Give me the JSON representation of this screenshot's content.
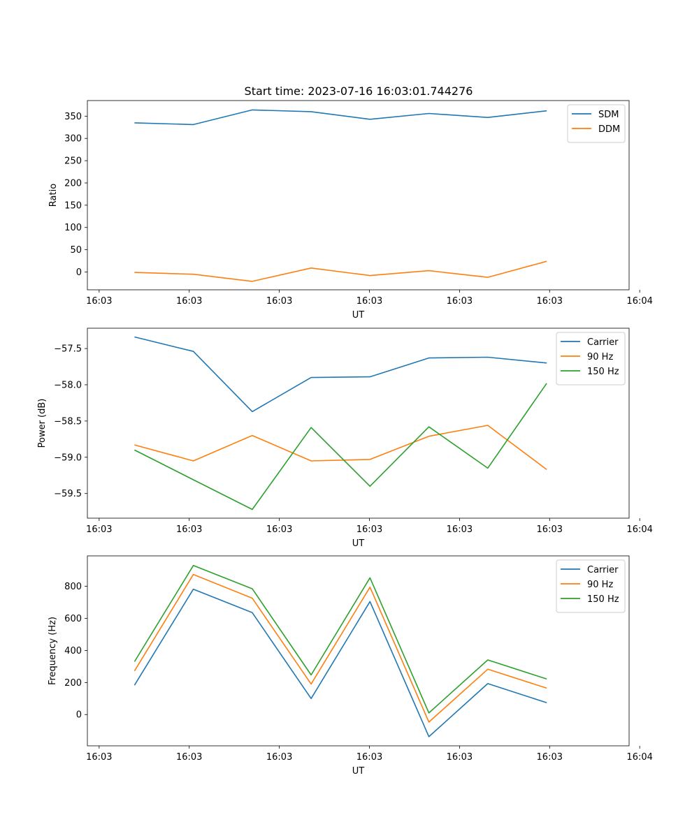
{
  "figure_title": "Start time: 2023-07-16 16:03:01.744276",
  "chart_data": [
    {
      "type": "line",
      "title": "Start time: 2023-07-16 16:03:01.744276",
      "xlabel": "UT",
      "ylabel": "Ratio",
      "x": [
        1,
        2,
        3,
        4,
        5,
        6,
        7,
        8
      ],
      "xlim": [
        0.2,
        9.4
      ],
      "x_ticks": [
        0.4,
        1.93,
        3.46,
        4.99,
        6.52,
        8.05,
        9.58
      ],
      "x_tick_labels": [
        "16:03",
        "16:03",
        "16:03",
        "16:03",
        "16:03",
        "16:03",
        "16:04"
      ],
      "ylim": [
        -40,
        385
      ],
      "y_ticks": [
        0,
        50,
        100,
        150,
        200,
        250,
        300,
        350
      ],
      "y_tick_labels": [
        "0",
        "50",
        "100",
        "150",
        "200",
        "250",
        "300",
        "350"
      ],
      "legend_position": "top-right",
      "series": [
        {
          "name": "SDM",
          "color": "#1f77b4",
          "values": [
            335,
            331,
            364,
            360,
            343,
            356,
            347,
            362
          ]
        },
        {
          "name": "DDM",
          "color": "#ff7f0e",
          "values": [
            -1,
            -5,
            -21,
            9,
            -8,
            3,
            -12,
            24
          ]
        }
      ]
    },
    {
      "type": "line",
      "title": "",
      "xlabel": "UT",
      "ylabel": "Power (dB)",
      "x": [
        1,
        2,
        3,
        4,
        5,
        6,
        7,
        8
      ],
      "xlim": [
        0.2,
        9.4
      ],
      "x_ticks": [
        0.4,
        1.93,
        3.46,
        4.99,
        6.52,
        8.05,
        9.58
      ],
      "x_tick_labels": [
        "16:03",
        "16:03",
        "16:03",
        "16:03",
        "16:03",
        "16:03",
        "16:04"
      ],
      "ylim": [
        -59.84,
        -57.22
      ],
      "y_ticks": [
        -59.5,
        -59.0,
        -58.5,
        -58.0,
        -57.5
      ],
      "y_tick_labels": [
        "−59.5",
        "−59.0",
        "−58.5",
        "−58.0",
        "−57.5"
      ],
      "legend_position": "top-right",
      "series": [
        {
          "name": "Carrier",
          "color": "#1f77b4",
          "values": [
            -57.34,
            -57.54,
            -58.37,
            -57.9,
            -57.89,
            -57.63,
            -57.62,
            -57.7
          ]
        },
        {
          "name": "90 Hz",
          "color": "#ff7f0e",
          "values": [
            -58.83,
            -59.05,
            -58.7,
            -59.05,
            -59.03,
            -58.71,
            -58.56,
            -59.17
          ]
        },
        {
          "name": "150 Hz",
          "color": "#2ca02c",
          "values": [
            -58.9,
            -59.31,
            -59.72,
            -58.59,
            -59.4,
            -58.58,
            -59.15,
            -57.98
          ]
        }
      ]
    },
    {
      "type": "line",
      "title": "",
      "xlabel": "UT",
      "ylabel": "Frequency (Hz)",
      "x": [
        1,
        2,
        3,
        4,
        5,
        6,
        7,
        8
      ],
      "xlim": [
        0.2,
        9.4
      ],
      "x_ticks": [
        0.4,
        1.93,
        3.46,
        4.99,
        6.52,
        8.05,
        9.58
      ],
      "x_tick_labels": [
        "16:03",
        "16:03",
        "16:03",
        "16:03",
        "16:03",
        "16:03",
        "16:04"
      ],
      "ylim": [
        -195,
        990
      ],
      "y_ticks": [
        0,
        200,
        400,
        600,
        800
      ],
      "y_tick_labels": [
        "0",
        "200",
        "400",
        "600",
        "800"
      ],
      "legend_position": "top-right",
      "series": [
        {
          "name": "Carrier",
          "color": "#1f77b4",
          "values": [
            183,
            782,
            636,
            100,
            705,
            -138,
            193,
            74
          ]
        },
        {
          "name": "90 Hz",
          "color": "#ff7f0e",
          "values": [
            272,
            874,
            726,
            190,
            795,
            -47,
            283,
            165
          ]
        },
        {
          "name": "150 Hz",
          "color": "#2ca02c",
          "values": [
            330,
            930,
            785,
            247,
            853,
            10,
            341,
            222
          ]
        }
      ]
    }
  ]
}
